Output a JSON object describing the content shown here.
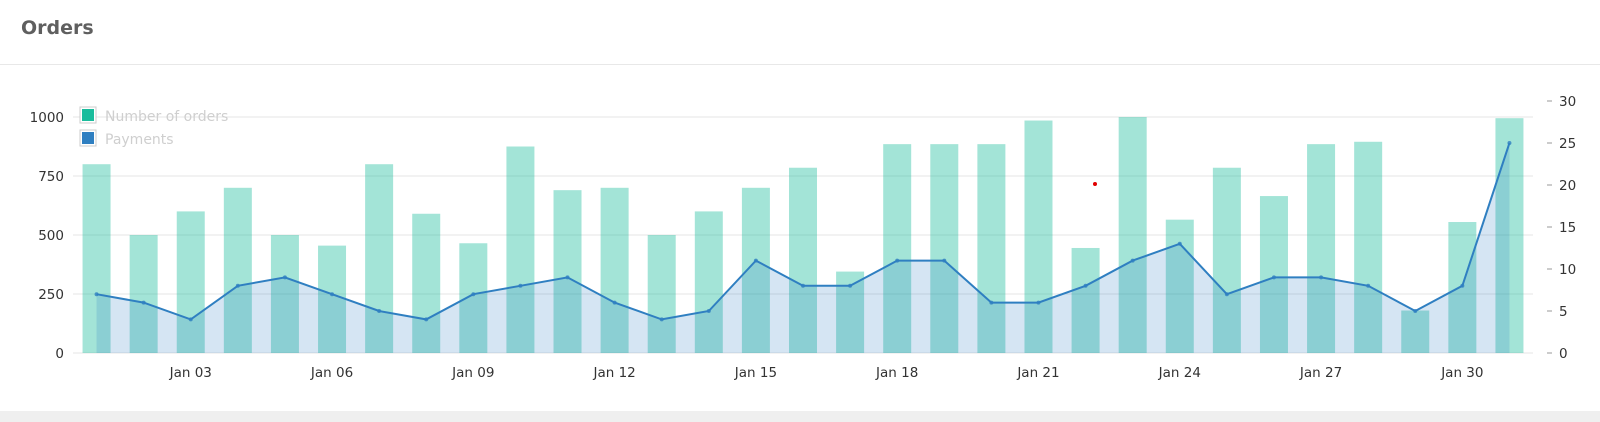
{
  "panel": {
    "title": "Orders"
  },
  "chart_data": {
    "type": "bar",
    "title": "Orders",
    "categories": [
      "Jan 01",
      "Jan 02",
      "Jan 03",
      "Jan 04",
      "Jan 05",
      "Jan 06",
      "Jan 07",
      "Jan 08",
      "Jan 09",
      "Jan 10",
      "Jan 11",
      "Jan 12",
      "Jan 13",
      "Jan 14",
      "Jan 15",
      "Jan 16",
      "Jan 17",
      "Jan 18",
      "Jan 19",
      "Jan 20",
      "Jan 21",
      "Jan 22",
      "Jan 23",
      "Jan 24",
      "Jan 25",
      "Jan 26",
      "Jan 27",
      "Jan 28",
      "Jan 29",
      "Jan 30",
      "Jan 31"
    ],
    "x_tick_labels": [
      "Jan 03",
      "Jan 06",
      "Jan 09",
      "Jan 12",
      "Jan 15",
      "Jan 18",
      "Jan 21",
      "Jan 24",
      "Jan 27",
      "Jan 30"
    ],
    "series": [
      {
        "name": "Number of orders",
        "type": "bar",
        "axis": "left",
        "color": "#1abc9c",
        "values": [
          800,
          500,
          600,
          700,
          500,
          455,
          800,
          590,
          465,
          875,
          690,
          700,
          500,
          600,
          700,
          785,
          345,
          885,
          885,
          885,
          985,
          445,
          1000,
          565,
          785,
          665,
          885,
          895,
          180,
          555,
          995
        ]
      },
      {
        "name": "Payments",
        "type": "area",
        "axis": "right",
        "color": "#2f7fc1",
        "values": [
          7,
          6,
          4,
          8,
          9,
          7,
          5,
          4,
          7,
          8,
          9,
          6,
          4,
          5,
          11,
          8,
          8,
          11,
          11,
          6,
          6,
          8,
          11,
          13,
          7,
          9,
          9,
          8,
          5,
          8,
          25
        ]
      }
    ],
    "y_left": {
      "min": 0,
      "max": 1000,
      "ticks": [
        "0",
        "250",
        "500",
        "750",
        "1000"
      ]
    },
    "y_right": {
      "min": 0,
      "max": 30,
      "ticks": [
        "0",
        "5",
        "10",
        "15",
        "20",
        "25",
        "30"
      ]
    },
    "grid": true,
    "legend": "top-left"
  }
}
